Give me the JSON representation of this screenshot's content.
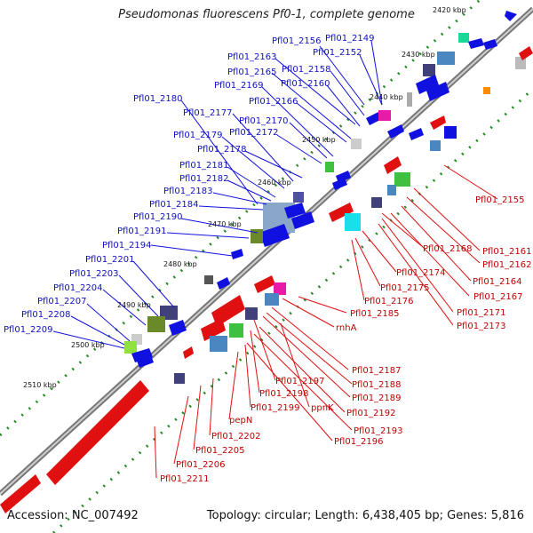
{
  "title": "Pseudomonas fluorescens Pf0-1, complete genome",
  "footer": {
    "accession": "Accession: NC_007492",
    "summary": "Topology: circular; Length: 6,438,405 bp; Genes: 5,816"
  },
  "colors": {
    "forward_gene": "#1010e0",
    "reverse_gene": "#e01010",
    "forward_label": "#1010c0",
    "reverse_label": "#c00000",
    "backbone": "#888888",
    "tick": "#2a8a2a"
  },
  "kbp_marks": [
    "2420 kbp",
    "2430 kbp",
    "2440 kbp",
    "2450 kbp",
    "2460 kbp",
    "2470 kbp",
    "2480 kbp",
    "2490 kbp",
    "2500 kbp",
    "2510 kbp"
  ],
  "forward_labels": [
    "Pfl01_2156",
    "Pfl01_2149",
    "Pfl01_2163",
    "Pfl01_2152",
    "Pfl01_2165",
    "Pfl01_2158",
    "Pfl01_2169",
    "Pfl01_2160",
    "Pfl01_2180",
    "Pfl01_2166",
    "Pfl01_2177",
    "Pfl01_2170",
    "Pfl01_2179",
    "Pfl01_2172",
    "Pfl01_2178",
    "Pfl01_2181",
    "Pfl01_2182",
    "Pfl01_2183",
    "Pfl01_2184",
    "Pfl01_2190",
    "Pfl01_2191",
    "Pfl01_2194",
    "Pfl01_2201",
    "Pfl01_2203",
    "Pfl01_2204",
    "Pfl01_2207",
    "Pfl01_2208",
    "Pfl01_2209"
  ],
  "reverse_labels": [
    "Pfl01_2155",
    "Pfl01_2168",
    "Pfl01_2161",
    "Pfl01_2162",
    "Pfl01_2174",
    "Pfl01_2164",
    "Pfl01_2175",
    "Pfl01_2167",
    "Pfl01_2176",
    "Pfl01_2171",
    "Pfl01_2185",
    "Pfl01_2173",
    "rnhA",
    "Pfl01_2187",
    "Pfl01_2197",
    "Pfl01_2188",
    "Pfl01_2198",
    "Pfl01_2189",
    "Pfl01_2199",
    "ppnK",
    "Pfl01_2192",
    "pepN",
    "Pfl01_2193",
    "Pfl01_2202",
    "Pfl01_2196",
    "Pfl01_2205",
    "Pfl01_2206",
    "Pfl01_2211"
  ]
}
